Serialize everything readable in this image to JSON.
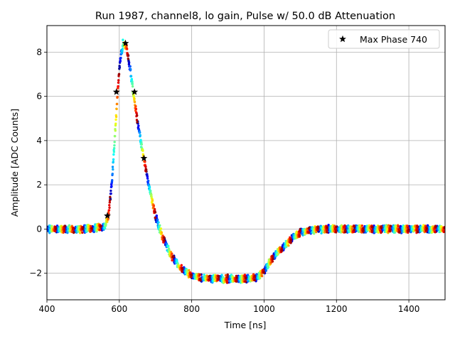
{
  "chart_data": {
    "type": "scatter",
    "title": "Run 1987, channel8, lo gain, Pulse w/ 50.0 dB Attenuation",
    "xlabel": "Time [ns]",
    "ylabel": "Amplitude [ADC Counts]",
    "xlim": [
      400,
      1500
    ],
    "ylim": [
      -3.2,
      9.2
    ],
    "xticks": [
      400,
      600,
      800,
      1000,
      1200,
      1400
    ],
    "yticks": [
      -2,
      0,
      2,
      4,
      6,
      8
    ],
    "xtick_labels": [
      "400",
      "600",
      "800",
      "1000",
      "1200",
      "1400"
    ],
    "ytick_labels": [
      "−2",
      "0",
      "2",
      "4",
      "6",
      "8"
    ],
    "grid": true,
    "legend": {
      "position": "top-right",
      "entries": [
        {
          "label": "Max Phase 740",
          "marker": "star",
          "color": "#000000"
        }
      ]
    },
    "colormap": "jet",
    "waveform": {
      "description": "ensemble of phase-shifted samples colored by phase",
      "x": [
        400,
        500,
        560,
        570,
        580,
        590,
        600,
        610,
        620,
        630,
        640,
        650,
        660,
        670,
        680,
        690,
        700,
        720,
        740,
        760,
        780,
        800,
        820,
        850,
        900,
        950,
        980,
        1000,
        1020,
        1040,
        1060,
        1080,
        1100,
        1150,
        1200,
        1300,
        1400,
        1500
      ],
      "y": [
        0,
        0,
        0.1,
        0.6,
        2.2,
        4.8,
        7.3,
        8.4,
        8.2,
        7.2,
        6.0,
        4.9,
        3.9,
        3.0,
        2.1,
        1.3,
        0.6,
        -0.4,
        -1.1,
        -1.6,
        -1.9,
        -2.1,
        -2.2,
        -2.25,
        -2.25,
        -2.25,
        -2.2,
        -1.9,
        -1.4,
        -1.0,
        -0.7,
        -0.4,
        -0.15,
        0,
        0,
        0,
        0,
        0
      ]
    },
    "max_phase_series": {
      "name": "Max Phase 740",
      "x": [
        567,
        592,
        617,
        642,
        668
      ],
      "y": [
        0.6,
        6.2,
        8.4,
        6.2,
        3.2
      ]
    }
  }
}
